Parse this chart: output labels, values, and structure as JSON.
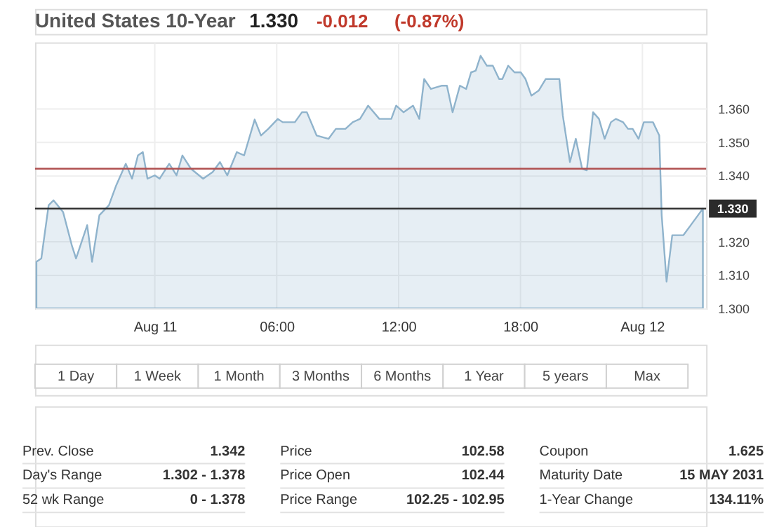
{
  "chart_data": [
    {
      "type": "area",
      "title": "United States 10-Year",
      "annotations": [
        "1.330",
        "-0.012",
        "(-0.87%)"
      ],
      "x": [
        -5.83,
        -5.59,
        -5.23,
        -4.99,
        -4.52,
        -4.09,
        -3.88,
        -3.33,
        -3.09,
        -2.73,
        -2.26,
        -1.9,
        -1.43,
        -1.12,
        -0.83,
        -0.59,
        -0.36,
        0,
        0.24,
        0.71,
        1.07,
        1.36,
        1.78,
        2.38,
        2.85,
        3.21,
        3.57,
        4.04,
        4.4,
        4.92,
        5.23,
        5.59,
        6.06,
        6.3,
        6.9,
        7.25,
        7.49,
        7.97,
        8.56,
        8.92,
        9.39,
        9.75,
        10.11,
        10.51,
        11.06,
        11.65,
        11.89,
        12.25,
        12.72,
        13.03,
        13.27,
        13.6,
        14.15,
        14.39,
        14.67,
        15.03,
        15.34,
        15.58,
        15.81,
        16.05,
        16.36,
        16.65,
        16.96,
        17.12,
        17.41,
        17.72,
        18.03,
        18.26,
        18.55,
        18.91,
        19.26,
        19.93,
        20.1,
        20.45,
        20.74,
        21.05,
        21.28,
        21.59,
        21.88,
        22.16,
        22.47,
        22.71,
        23.07,
        23.31,
        23.54,
        23.83,
        24.09,
        24.54,
        24.85,
        24.97,
        25.21,
        25.49,
        26.04,
        26.4,
        27.0
      ],
      "series": [
        {
          "color": "#8fb3cc",
          "values": [
            1.314,
            1.315,
            1.331,
            1.3325,
            1.329,
            1.319,
            1.315,
            1.325,
            1.314,
            1.328,
            1.331,
            1.337,
            1.3435,
            1.339,
            1.346,
            1.347,
            1.339,
            1.34,
            1.339,
            1.3435,
            1.34,
            1.346,
            1.342,
            1.339,
            1.341,
            1.344,
            1.34,
            1.347,
            1.346,
            1.3568,
            1.352,
            1.354,
            1.357,
            1.356,
            1.356,
            1.359,
            1.359,
            1.352,
            1.351,
            1.354,
            1.354,
            1.356,
            1.357,
            1.361,
            1.357,
            1.357,
            1.361,
            1.359,
            1.361,
            1.357,
            1.369,
            1.366,
            1.367,
            1.367,
            1.359,
            1.367,
            1.366,
            1.371,
            1.3715,
            1.376,
            1.373,
            1.373,
            1.369,
            1.369,
            1.373,
            1.371,
            1.371,
            1.369,
            1.364,
            1.3655,
            1.369,
            1.369,
            1.358,
            1.344,
            1.351,
            1.342,
            1.3415,
            1.359,
            1.357,
            1.351,
            1.356,
            1.357,
            1.356,
            1.354,
            1.354,
            1.351,
            1.356,
            1.356,
            1.352,
            1.328,
            1.308,
            1.322,
            1.322,
            1.325,
            1.33
          ]
        }
      ],
      "xlim": [
        -5.9,
        27.16
      ],
      "xticks": [
        {
          "value": 0,
          "label": "Aug 11"
        },
        {
          "value": 6,
          "label": "06:00"
        },
        {
          "value": 12,
          "label": "12:00"
        },
        {
          "value": 18,
          "label": "18:00"
        },
        {
          "value": 24,
          "label": "Aug 12"
        }
      ],
      "ylim": [
        1.3,
        1.38
      ],
      "yticks": [
        {
          "value": 1.3,
          "label": "1.300"
        },
        {
          "value": 1.31,
          "label": "1.310"
        },
        {
          "value": 1.32,
          "label": "1.320"
        },
        {
          "value": 1.33,
          "label": null
        },
        {
          "value": 1.34,
          "label": "1.340"
        },
        {
          "value": 1.35,
          "label": "1.350"
        },
        {
          "value": 1.36,
          "label": "1.360"
        }
      ],
      "grid": true,
      "ref_lines": [
        {
          "axis": "y",
          "value": 1.342,
          "color": "#b05050"
        },
        {
          "axis": "y",
          "value": 1.33,
          "label": "1.330",
          "color": "#2b2b2b"
        }
      ]
    },
    {
      "type": "other",
      "annotations": [
        "1 Day",
        "1 Week",
        "1 Month",
        "3 Months",
        "6 Months",
        "1 Year",
        "5 years",
        "Max"
      ]
    },
    {
      "type": "other",
      "annotations": [
        "Prev. Close",
        "1.342",
        "Day's Range",
        "1.302 - 1.378",
        "52 wk Range",
        "0 - 1.378",
        "Price",
        "102.58",
        "Price Open",
        "102.44",
        "Price Range",
        "102.25 - 102.95",
        "Coupon",
        "1.625",
        "Maturity Date",
        "15 MAY 2031",
        "1-Year Change",
        "134.11%"
      ]
    }
  ]
}
